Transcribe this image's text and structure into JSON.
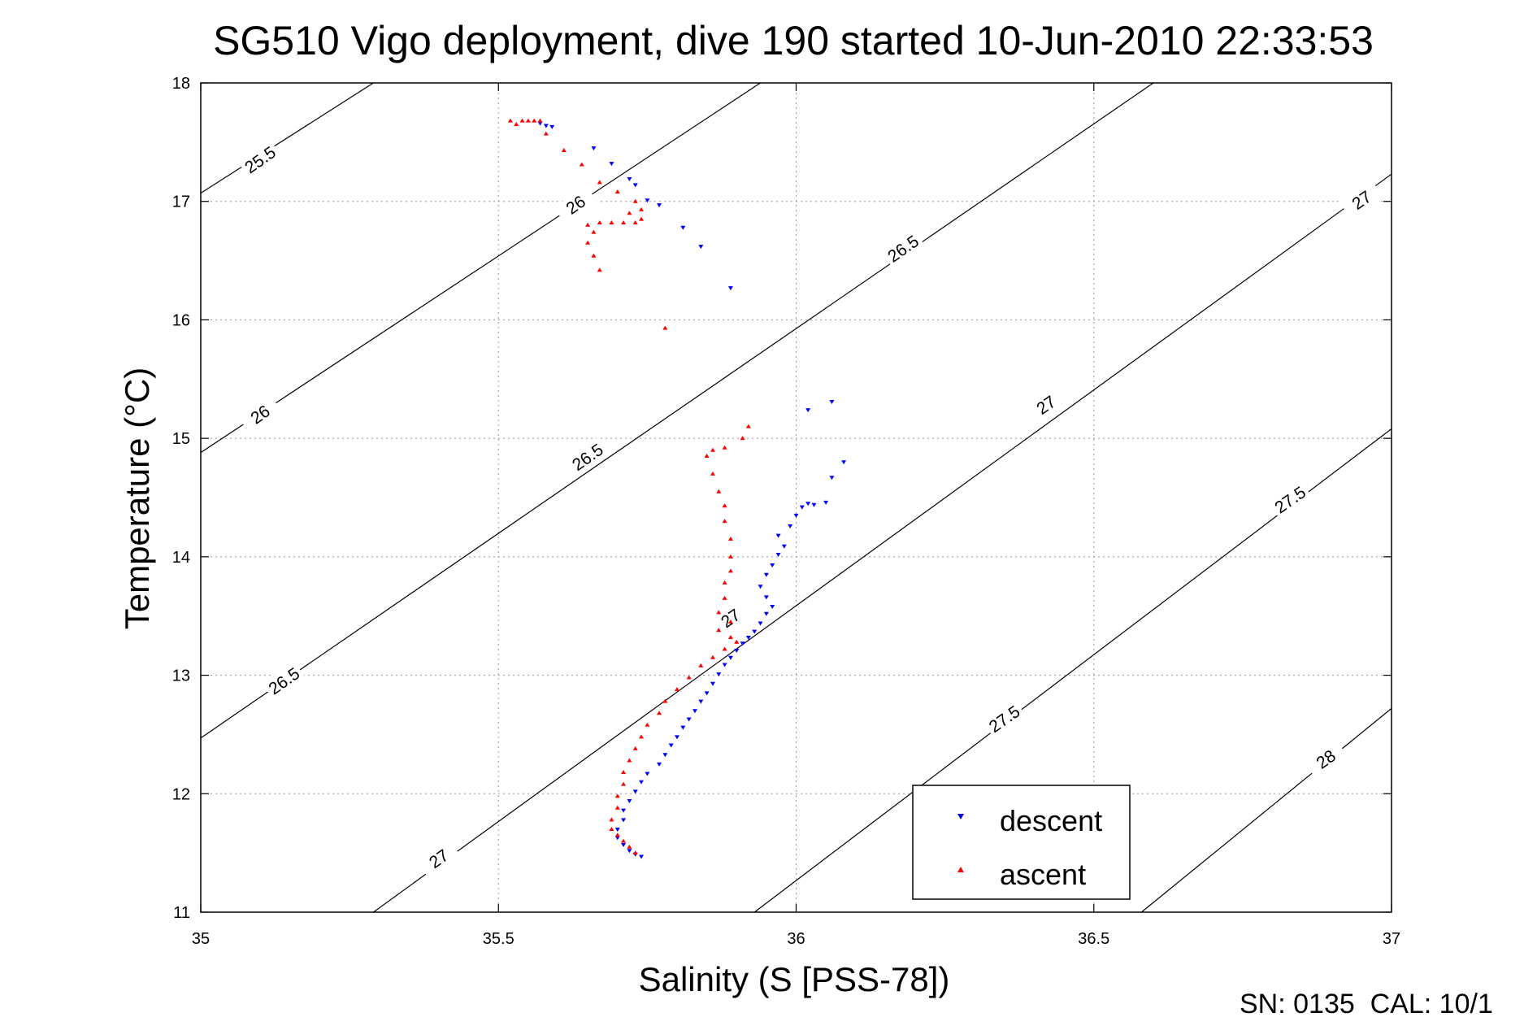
{
  "chart_data": {
    "type": "scatter",
    "title": "SG510 Vigo deployment, dive 190 started 10-Jun-2010 22:33:53",
    "xlabel": "Salinity (S [PSS-78])",
    "ylabel": "Temperature (°C)",
    "xlim": [
      35,
      37
    ],
    "ylim": [
      11,
      18
    ],
    "x_ticks": [
      35,
      35.5,
      36,
      36.5,
      37
    ],
    "x_tick_labels": [
      "35",
      "35.5",
      "36",
      "36.5",
      "37"
    ],
    "y_ticks": [
      11,
      12,
      13,
      14,
      15,
      16,
      17,
      18
    ],
    "y_tick_labels": [
      "11",
      "12",
      "13",
      "14",
      "15",
      "16",
      "17",
      "18"
    ],
    "grid": true,
    "legend_position": "bottom-right",
    "footer": "SN: 0135  CAL: 10/1",
    "isopycnal_lines": [
      {
        "sigma": 25.5,
        "points": [
          [
            35.0,
            17.07
          ],
          [
            35.29,
            18.0
          ]
        ]
      },
      {
        "sigma": 26.0,
        "points": [
          [
            35.0,
            14.88
          ],
          [
            35.94,
            18.0
          ]
        ]
      },
      {
        "sigma": 26.5,
        "points": [
          [
            35.0,
            12.47
          ],
          [
            36.6,
            18.0
          ]
        ]
      },
      {
        "sigma": 27.0,
        "points": [
          [
            35.29,
            11.0
          ],
          [
            37.0,
            17.23
          ]
        ]
      },
      {
        "sigma": 27.5,
        "points": [
          [
            35.93,
            11.0
          ],
          [
            37.0,
            15.08
          ]
        ]
      },
      {
        "sigma": 28.0,
        "points": [
          [
            36.58,
            11.0
          ],
          [
            37.0,
            12.72
          ]
        ]
      }
    ],
    "isopycnal_labels": [
      {
        "text": "25.5",
        "x": 35.1,
        "y": 17.35
      },
      {
        "text": "26",
        "x": 35.63,
        "y": 16.97
      },
      {
        "text": "26.5",
        "x": 36.18,
        "y": 16.6
      },
      {
        "text": "27",
        "x": 36.95,
        "y": 17.01
      },
      {
        "text": "26",
        "x": 35.1,
        "y": 15.2
      },
      {
        "text": "26.5",
        "x": 35.65,
        "y": 14.84
      },
      {
        "text": "27",
        "x": 36.42,
        "y": 15.28
      },
      {
        "text": "26.5",
        "x": 35.14,
        "y": 12.95
      },
      {
        "text": "27.5",
        "x": 36.83,
        "y": 14.48
      },
      {
        "text": "27",
        "x": 35.89,
        "y": 13.48
      },
      {
        "text": "27.5",
        "x": 36.35,
        "y": 12.63
      },
      {
        "text": "27",
        "x": 35.4,
        "y": 11.45
      },
      {
        "text": "28",
        "x": 36.89,
        "y": 12.29
      }
    ],
    "series": [
      {
        "name": "descent",
        "color": "#0000ff",
        "marker": "triangle-down",
        "points": [
          [
            35.57,
            17.66
          ],
          [
            35.58,
            17.64
          ],
          [
            35.59,
            17.63
          ],
          [
            35.66,
            17.45
          ],
          [
            35.69,
            17.32
          ],
          [
            35.72,
            17.19
          ],
          [
            35.73,
            17.14
          ],
          [
            35.75,
            17.01
          ],
          [
            35.77,
            16.97
          ],
          [
            35.81,
            16.78
          ],
          [
            35.84,
            16.62
          ],
          [
            35.89,
            16.27
          ],
          [
            35.74,
            11.47
          ],
          [
            35.73,
            11.49
          ],
          [
            35.72,
            11.52
          ],
          [
            35.71,
            11.57
          ],
          [
            35.7,
            11.63
          ],
          [
            35.7,
            11.7
          ],
          [
            35.71,
            11.78
          ],
          [
            35.71,
            11.86
          ],
          [
            35.72,
            11.94
          ],
          [
            35.73,
            12.02
          ],
          [
            35.74,
            12.1
          ],
          [
            35.75,
            12.17
          ],
          [
            35.77,
            12.25
          ],
          [
            35.78,
            12.33
          ],
          [
            35.79,
            12.41
          ],
          [
            35.8,
            12.48
          ],
          [
            35.81,
            12.56
          ],
          [
            35.82,
            12.63
          ],
          [
            35.83,
            12.7
          ],
          [
            35.84,
            12.78
          ],
          [
            35.85,
            12.85
          ],
          [
            35.86,
            12.93
          ],
          [
            35.87,
            13.01
          ],
          [
            35.88,
            13.09
          ],
          [
            35.89,
            13.15
          ],
          [
            35.9,
            13.21
          ],
          [
            35.91,
            13.27
          ],
          [
            35.92,
            13.32
          ],
          [
            35.93,
            13.37
          ],
          [
            35.94,
            13.44
          ],
          [
            35.95,
            13.52
          ],
          [
            35.96,
            13.58
          ],
          [
            35.95,
            13.66
          ],
          [
            35.94,
            13.75
          ],
          [
            35.95,
            13.85
          ],
          [
            35.96,
            13.93
          ],
          [
            35.97,
            14.02
          ],
          [
            35.98,
            14.09
          ],
          [
            35.97,
            14.18
          ],
          [
            35.99,
            14.26
          ],
          [
            36.0,
            14.35
          ],
          [
            36.01,
            14.42
          ],
          [
            36.02,
            14.45
          ],
          [
            36.03,
            14.44
          ],
          [
            36.05,
            14.46
          ],
          [
            36.06,
            14.67
          ],
          [
            36.08,
            14.8
          ],
          [
            36.02,
            15.24
          ],
          [
            36.06,
            15.31
          ]
        ]
      },
      {
        "name": "ascent",
        "color": "#ff0000",
        "marker": "triangle-up",
        "points": [
          [
            35.52,
            17.68
          ],
          [
            35.53,
            17.65
          ],
          [
            35.54,
            17.68
          ],
          [
            35.55,
            17.68
          ],
          [
            35.56,
            17.68
          ],
          [
            35.57,
            17.68
          ],
          [
            35.58,
            17.57
          ],
          [
            35.61,
            17.43
          ],
          [
            35.64,
            17.31
          ],
          [
            35.67,
            17.16
          ],
          [
            35.7,
            17.08
          ],
          [
            35.73,
            17.0
          ],
          [
            35.74,
            16.93
          ],
          [
            35.72,
            16.9
          ],
          [
            35.74,
            16.85
          ],
          [
            35.73,
            16.82
          ],
          [
            35.71,
            16.82
          ],
          [
            35.69,
            16.82
          ],
          [
            35.67,
            16.82
          ],
          [
            35.65,
            16.8
          ],
          [
            35.66,
            16.74
          ],
          [
            35.65,
            16.65
          ],
          [
            35.66,
            16.54
          ],
          [
            35.67,
            16.42
          ],
          [
            35.78,
            15.93
          ],
          [
            35.92,
            15.1
          ],
          [
            35.91,
            15.0
          ],
          [
            35.88,
            14.92
          ],
          [
            35.86,
            14.9
          ],
          [
            35.85,
            14.85
          ],
          [
            35.86,
            14.7
          ],
          [
            35.87,
            14.55
          ],
          [
            35.88,
            14.43
          ],
          [
            35.88,
            14.3
          ],
          [
            35.89,
            14.15
          ],
          [
            35.89,
            14.0
          ],
          [
            35.89,
            13.88
          ],
          [
            35.88,
            13.78
          ],
          [
            35.88,
            13.65
          ],
          [
            35.87,
            13.53
          ],
          [
            35.89,
            13.45
          ],
          [
            35.87,
            13.38
          ],
          [
            35.89,
            13.32
          ],
          [
            35.9,
            13.28
          ],
          [
            35.88,
            13.22
          ],
          [
            35.86,
            13.15
          ],
          [
            35.84,
            13.08
          ],
          [
            35.82,
            12.98
          ],
          [
            35.8,
            12.88
          ],
          [
            35.78,
            12.78
          ],
          [
            35.77,
            12.68
          ],
          [
            35.75,
            12.58
          ],
          [
            35.74,
            12.48
          ],
          [
            35.73,
            12.38
          ],
          [
            35.72,
            12.28
          ],
          [
            35.71,
            12.18
          ],
          [
            35.71,
            12.08
          ],
          [
            35.7,
            11.98
          ],
          [
            35.7,
            11.88
          ],
          [
            35.69,
            11.78
          ],
          [
            35.69,
            11.7
          ],
          [
            35.7,
            11.65
          ],
          [
            35.71,
            11.6
          ],
          [
            35.72,
            11.55
          ],
          [
            35.73,
            11.5
          ]
        ]
      }
    ]
  }
}
